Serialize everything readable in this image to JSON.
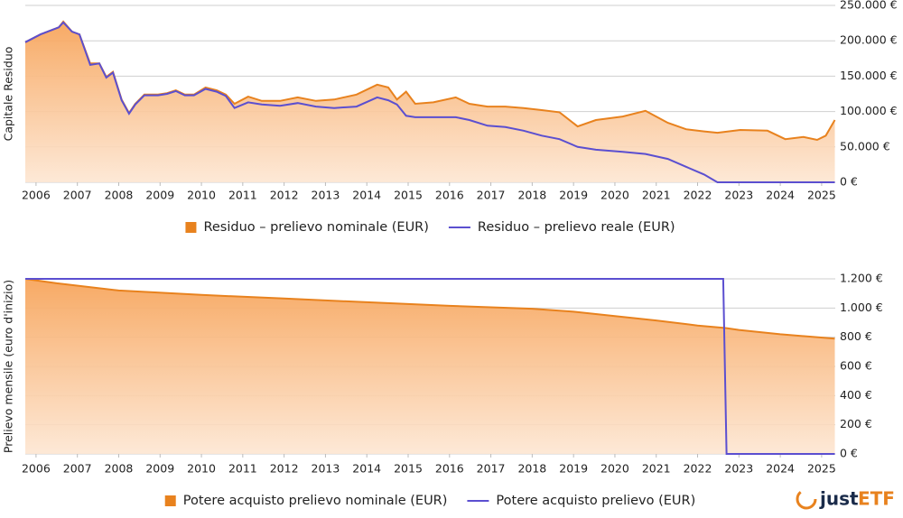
{
  "chart_data": [
    {
      "type": "line",
      "y_label": "Capitale Residuo",
      "x": [
        2005.74,
        2006.11,
        2006.55,
        2006.66,
        2006.87,
        2007.05,
        2007.31,
        2007.53,
        2007.7,
        2007.86,
        2008.07,
        2008.25,
        2008.4,
        2008.62,
        2008.95,
        2009.17,
        2009.38,
        2009.6,
        2009.82,
        2010.1,
        2010.37,
        2010.59,
        2010.8,
        2011.13,
        2011.46,
        2011.9,
        2012.33,
        2012.77,
        2013.21,
        2013.75,
        2014.25,
        2014.52,
        2014.73,
        2014.95,
        2015.17,
        2015.61,
        2016.15,
        2016.48,
        2016.92,
        2017.35,
        2017.79,
        2018.23,
        2018.66,
        2019.1,
        2019.54,
        2020.19,
        2020.74,
        2021.28,
        2021.72,
        2022.16,
        2022.48,
        2023.03,
        2023.69,
        2024.12,
        2024.56,
        2024.89,
        2025.1,
        2025.32
      ],
      "series": [
        {
          "name": "Residuo – prelievo nominale (EUR)",
          "color": "#e8821e",
          "area": true,
          "values": [
            198000,
            209000,
            219000,
            227000,
            213000,
            209000,
            168000,
            168000,
            149000,
            156000,
            117000,
            98000,
            111000,
            124000,
            124000,
            126000,
            130000,
            124000,
            124000,
            134000,
            130000,
            124000,
            111000,
            121000,
            115000,
            115000,
            120000,
            115000,
            117000,
            124000,
            138000,
            134000,
            117000,
            128000,
            111000,
            113000,
            120000,
            111000,
            107000,
            107000,
            105000,
            102000,
            99000,
            79000,
            88000,
            93000,
            101000,
            84000,
            75000,
            72000,
            70000,
            74000,
            73000,
            61000,
            64000,
            60000,
            66000,
            88000
          ]
        },
        {
          "name": "Residuo – prelievo reale (EUR)",
          "color": "#5b4fd0",
          "area": false,
          "values": [
            198000,
            209000,
            219000,
            226000,
            213000,
            209000,
            166000,
            168000,
            148000,
            155000,
            116000,
            97000,
            110000,
            123000,
            123000,
            125000,
            129000,
            123000,
            123000,
            132000,
            128000,
            122000,
            105000,
            113000,
            110000,
            108000,
            112000,
            107000,
            105000,
            107000,
            120000,
            116000,
            110000,
            94000,
            92000,
            92000,
            92000,
            88000,
            80000,
            78000,
            73000,
            66000,
            61000,
            50000,
            46000,
            43000,
            40000,
            33000,
            22000,
            11000,
            0,
            0,
            0,
            0,
            0,
            0,
            0,
            0
          ]
        }
      ],
      "xlim": [
        2005.74,
        2025.33
      ],
      "xticks": [
        2006,
        2007,
        2008,
        2009,
        2010,
        2011,
        2012,
        2013,
        2014,
        2015,
        2016,
        2017,
        2018,
        2019,
        2020,
        2021,
        2022,
        2023,
        2024,
        2025
      ],
      "ylim": [
        0,
        250000
      ],
      "yticks": [
        {
          "value": 0,
          "label": "0 €"
        },
        {
          "value": 50000,
          "label": "50.000 €"
        },
        {
          "value": 100000,
          "label": "100.000 €"
        },
        {
          "value": 150000,
          "label": "150.000 €"
        },
        {
          "value": 200000,
          "label": "200.000 €"
        },
        {
          "value": 250000,
          "label": "250.000 €"
        }
      ],
      "grid": true
    },
    {
      "type": "line",
      "y_label": "Prelievo mensile (euro d'inizio)",
      "x": [
        2005.74,
        2006.5,
        2008,
        2010,
        2012,
        2014,
        2016,
        2018,
        2019,
        2020,
        2021,
        2022,
        2022.62,
        2022.7,
        2023,
        2024,
        2025.32
      ],
      "series": [
        {
          "name": "Potere acquisto prelievo nominale (EUR)",
          "color": "#e8821e",
          "area": true,
          "values": [
            1200,
            1170,
            1120,
            1090,
            1065,
            1040,
            1015,
            995,
            975,
            945,
            915,
            880,
            865,
            862,
            850,
            820,
            790
          ]
        },
        {
          "name": "Potere acquisto prelievo (EUR)",
          "color": "#5b4fd0",
          "area": false,
          "values": [
            1200,
            1200,
            1200,
            1200,
            1200,
            1200,
            1200,
            1200,
            1200,
            1200,
            1200,
            1200,
            1200,
            0,
            0,
            0,
            0
          ]
        }
      ],
      "xlim": [
        2005.74,
        2025.33
      ],
      "xticks": [
        2006,
        2007,
        2008,
        2009,
        2010,
        2011,
        2012,
        2013,
        2014,
        2015,
        2016,
        2017,
        2018,
        2019,
        2020,
        2021,
        2022,
        2023,
        2024,
        2025
      ],
      "ylim": [
        0,
        1200
      ],
      "yticks": [
        {
          "value": 0,
          "label": "0 €"
        },
        {
          "value": 200,
          "label": "200 €"
        },
        {
          "value": 400,
          "label": "400 €"
        },
        {
          "value": 600,
          "label": "600 €"
        },
        {
          "value": 800,
          "label": "800 €"
        },
        {
          "value": 1000,
          "label": "1.000 €"
        },
        {
          "value": 1200,
          "label": "1.200 €"
        }
      ],
      "grid": true
    }
  ],
  "logo": {
    "part1": "just",
    "part2": "ETF"
  }
}
